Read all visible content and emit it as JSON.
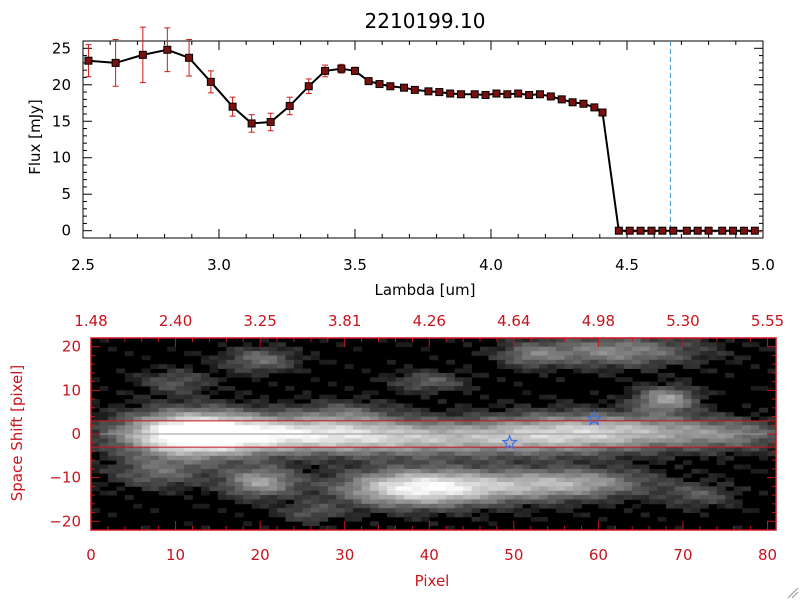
{
  "colors": {
    "background": "#ffffff",
    "axis_top": "#000000",
    "axis_bottom": "#c8141e",
    "series_line": "#000000",
    "marker": "#7a1010",
    "errorbar": "#d01818",
    "cutoff_line": "#4a90c0",
    "extraction_band": "#c8141e",
    "star_marker": "#3b6fe0"
  },
  "chart_data": [
    {
      "type": "line",
      "title": "2210199.10",
      "xlabel": "Lambda [um]",
      "ylabel": "Flux [mJy]",
      "xlim": [
        2.5,
        5.0
      ],
      "ylim": [
        -1,
        26
      ],
      "xticks": [
        2.5,
        3.0,
        3.5,
        4.0,
        4.5,
        5.0
      ],
      "xtick_labels": [
        "2.5",
        "3.0",
        "3.5",
        "4.0",
        "4.5",
        "5.0"
      ],
      "yticks": [
        0,
        5,
        10,
        15,
        20,
        25
      ],
      "ytick_labels": [
        "0",
        "5",
        "10",
        "15",
        "20",
        "25"
      ],
      "vline_x": 4.66,
      "series": [
        {
          "x": [
            2.52,
            2.62,
            2.72,
            2.81,
            2.89,
            2.97,
            3.05,
            3.12,
            3.19,
            3.26,
            3.33,
            3.39,
            3.45,
            3.5,
            3.55,
            3.59,
            3.63,
            3.68,
            3.72,
            3.77,
            3.81,
            3.85,
            3.89,
            3.94,
            3.98,
            4.02,
            4.06,
            4.1,
            4.14,
            4.18,
            4.22,
            4.26,
            4.3,
            4.34,
            4.38,
            4.41,
            4.47,
            4.51,
            4.55,
            4.59,
            4.63,
            4.67,
            4.72,
            4.76,
            4.8,
            4.85,
            4.89,
            4.93,
            4.97
          ],
          "y": [
            23.3,
            23.0,
            24.1,
            24.8,
            23.7,
            20.4,
            17.0,
            14.7,
            14.9,
            17.1,
            19.8,
            21.9,
            22.2,
            21.9,
            20.5,
            20.1,
            19.8,
            19.6,
            19.3,
            19.1,
            19.0,
            18.8,
            18.7,
            18.7,
            18.6,
            18.8,
            18.7,
            18.8,
            18.6,
            18.7,
            18.4,
            18.0,
            17.6,
            17.4,
            16.9,
            16.2,
            0,
            0,
            0,
            0,
            0,
            0,
            0,
            0,
            0,
            0,
            0,
            0,
            0
          ],
          "yerr": [
            2.2,
            3.2,
            3.8,
            3.0,
            2.5,
            1.5,
            1.3,
            1.2,
            1.2,
            1.2,
            1.0,
            0.8,
            0.6,
            0.5,
            0.4,
            0.4,
            0.4,
            0.3,
            0.3,
            0.3,
            0.3,
            0.3,
            0.3,
            0.3,
            0.3,
            0.3,
            0.3,
            0.3,
            0.3,
            0.3,
            0.3,
            0.3,
            0.3,
            0.3,
            0.3,
            0.3,
            0,
            0,
            0,
            0,
            0,
            0,
            0,
            0,
            0,
            0,
            0,
            0,
            0
          ]
        }
      ],
      "grid": false
    },
    {
      "type": "heatmap",
      "xlabel": "Pixel",
      "ylabel": "Space Shift [pixel]",
      "xlim": [
        0,
        81
      ],
      "ylim": [
        -22,
        22
      ],
      "xticks": [
        0,
        10,
        20,
        30,
        40,
        50,
        60,
        70,
        80
      ],
      "xtick_labels": [
        "0",
        "10",
        "20",
        "30",
        "40",
        "50",
        "60",
        "70",
        "80"
      ],
      "yticks": [
        -20,
        -10,
        0,
        10,
        20
      ],
      "ytick_labels": [
        "−20",
        "−10",
        "0",
        "10",
        "20"
      ],
      "top_ticks": [
        0,
        10,
        20,
        30,
        40,
        50,
        60,
        70,
        80
      ],
      "top_tick_labels": [
        "1.48",
        "2.40",
        "3.25",
        "3.81",
        "4.26",
        "4.64",
        "4.98",
        "5.30",
        "5.55"
      ],
      "extraction_band": [
        -3,
        3
      ],
      "center_line": 0,
      "stars": [
        {
          "x": 49.5,
          "y": -2
        },
        {
          "x": 59.5,
          "y": 3.5
        }
      ],
      "blobs": [
        {
          "x": 12,
          "y": 0,
          "sx": 5.5,
          "sy": 3.6,
          "v": 1.0
        },
        {
          "x": 24,
          "y": 0.3,
          "sx": 10,
          "sy": 2.8,
          "v": 0.6
        },
        {
          "x": 42,
          "y": -1.2,
          "sx": 17,
          "sy": 2.8,
          "v": 0.55
        },
        {
          "x": 56,
          "y": 1,
          "sx": 7,
          "sy": 3,
          "v": 0.42
        },
        {
          "x": 66,
          "y": 1,
          "sx": 6,
          "sy": 2.5,
          "v": 0.3
        },
        {
          "x": 38,
          "y": -12.5,
          "sx": 6,
          "sy": 3,
          "v": 0.72
        },
        {
          "x": 48,
          "y": -12,
          "sx": 9,
          "sy": 2.6,
          "v": 0.5
        },
        {
          "x": 58,
          "y": -11,
          "sx": 6,
          "sy": 2.2,
          "v": 0.35
        },
        {
          "x": 20,
          "y": -11,
          "sx": 3,
          "sy": 2.4,
          "v": 0.55
        },
        {
          "x": 8,
          "y": -9,
          "sx": 4,
          "sy": 2.5,
          "v": 0.3
        },
        {
          "x": 62,
          "y": 19,
          "sx": 7,
          "sy": 2.5,
          "v": 0.45
        },
        {
          "x": 68,
          "y": 8,
          "sx": 2.5,
          "sy": 2,
          "v": 0.55
        },
        {
          "x": 20,
          "y": 17,
          "sx": 3,
          "sy": 2,
          "v": 0.35
        },
        {
          "x": 40,
          "y": 12,
          "sx": 3,
          "sy": 1.6,
          "v": 0.3
        },
        {
          "x": 76,
          "y": 0,
          "sx": 5,
          "sy": 2.5,
          "v": 0.3
        },
        {
          "x": 52,
          "y": 18,
          "sx": 2.5,
          "sy": 1.8,
          "v": 0.28
        },
        {
          "x": 30,
          "y": 5,
          "sx": 4,
          "sy": 2,
          "v": 0.22
        },
        {
          "x": 10,
          "y": 12,
          "sx": 3,
          "sy": 2,
          "v": 0.25
        },
        {
          "x": 72,
          "y": -14,
          "sx": 3,
          "sy": 2,
          "v": 0.25
        },
        {
          "x": 26,
          "y": -18,
          "sx": 2.5,
          "sy": 1.6,
          "v": 0.25
        }
      ]
    }
  ]
}
